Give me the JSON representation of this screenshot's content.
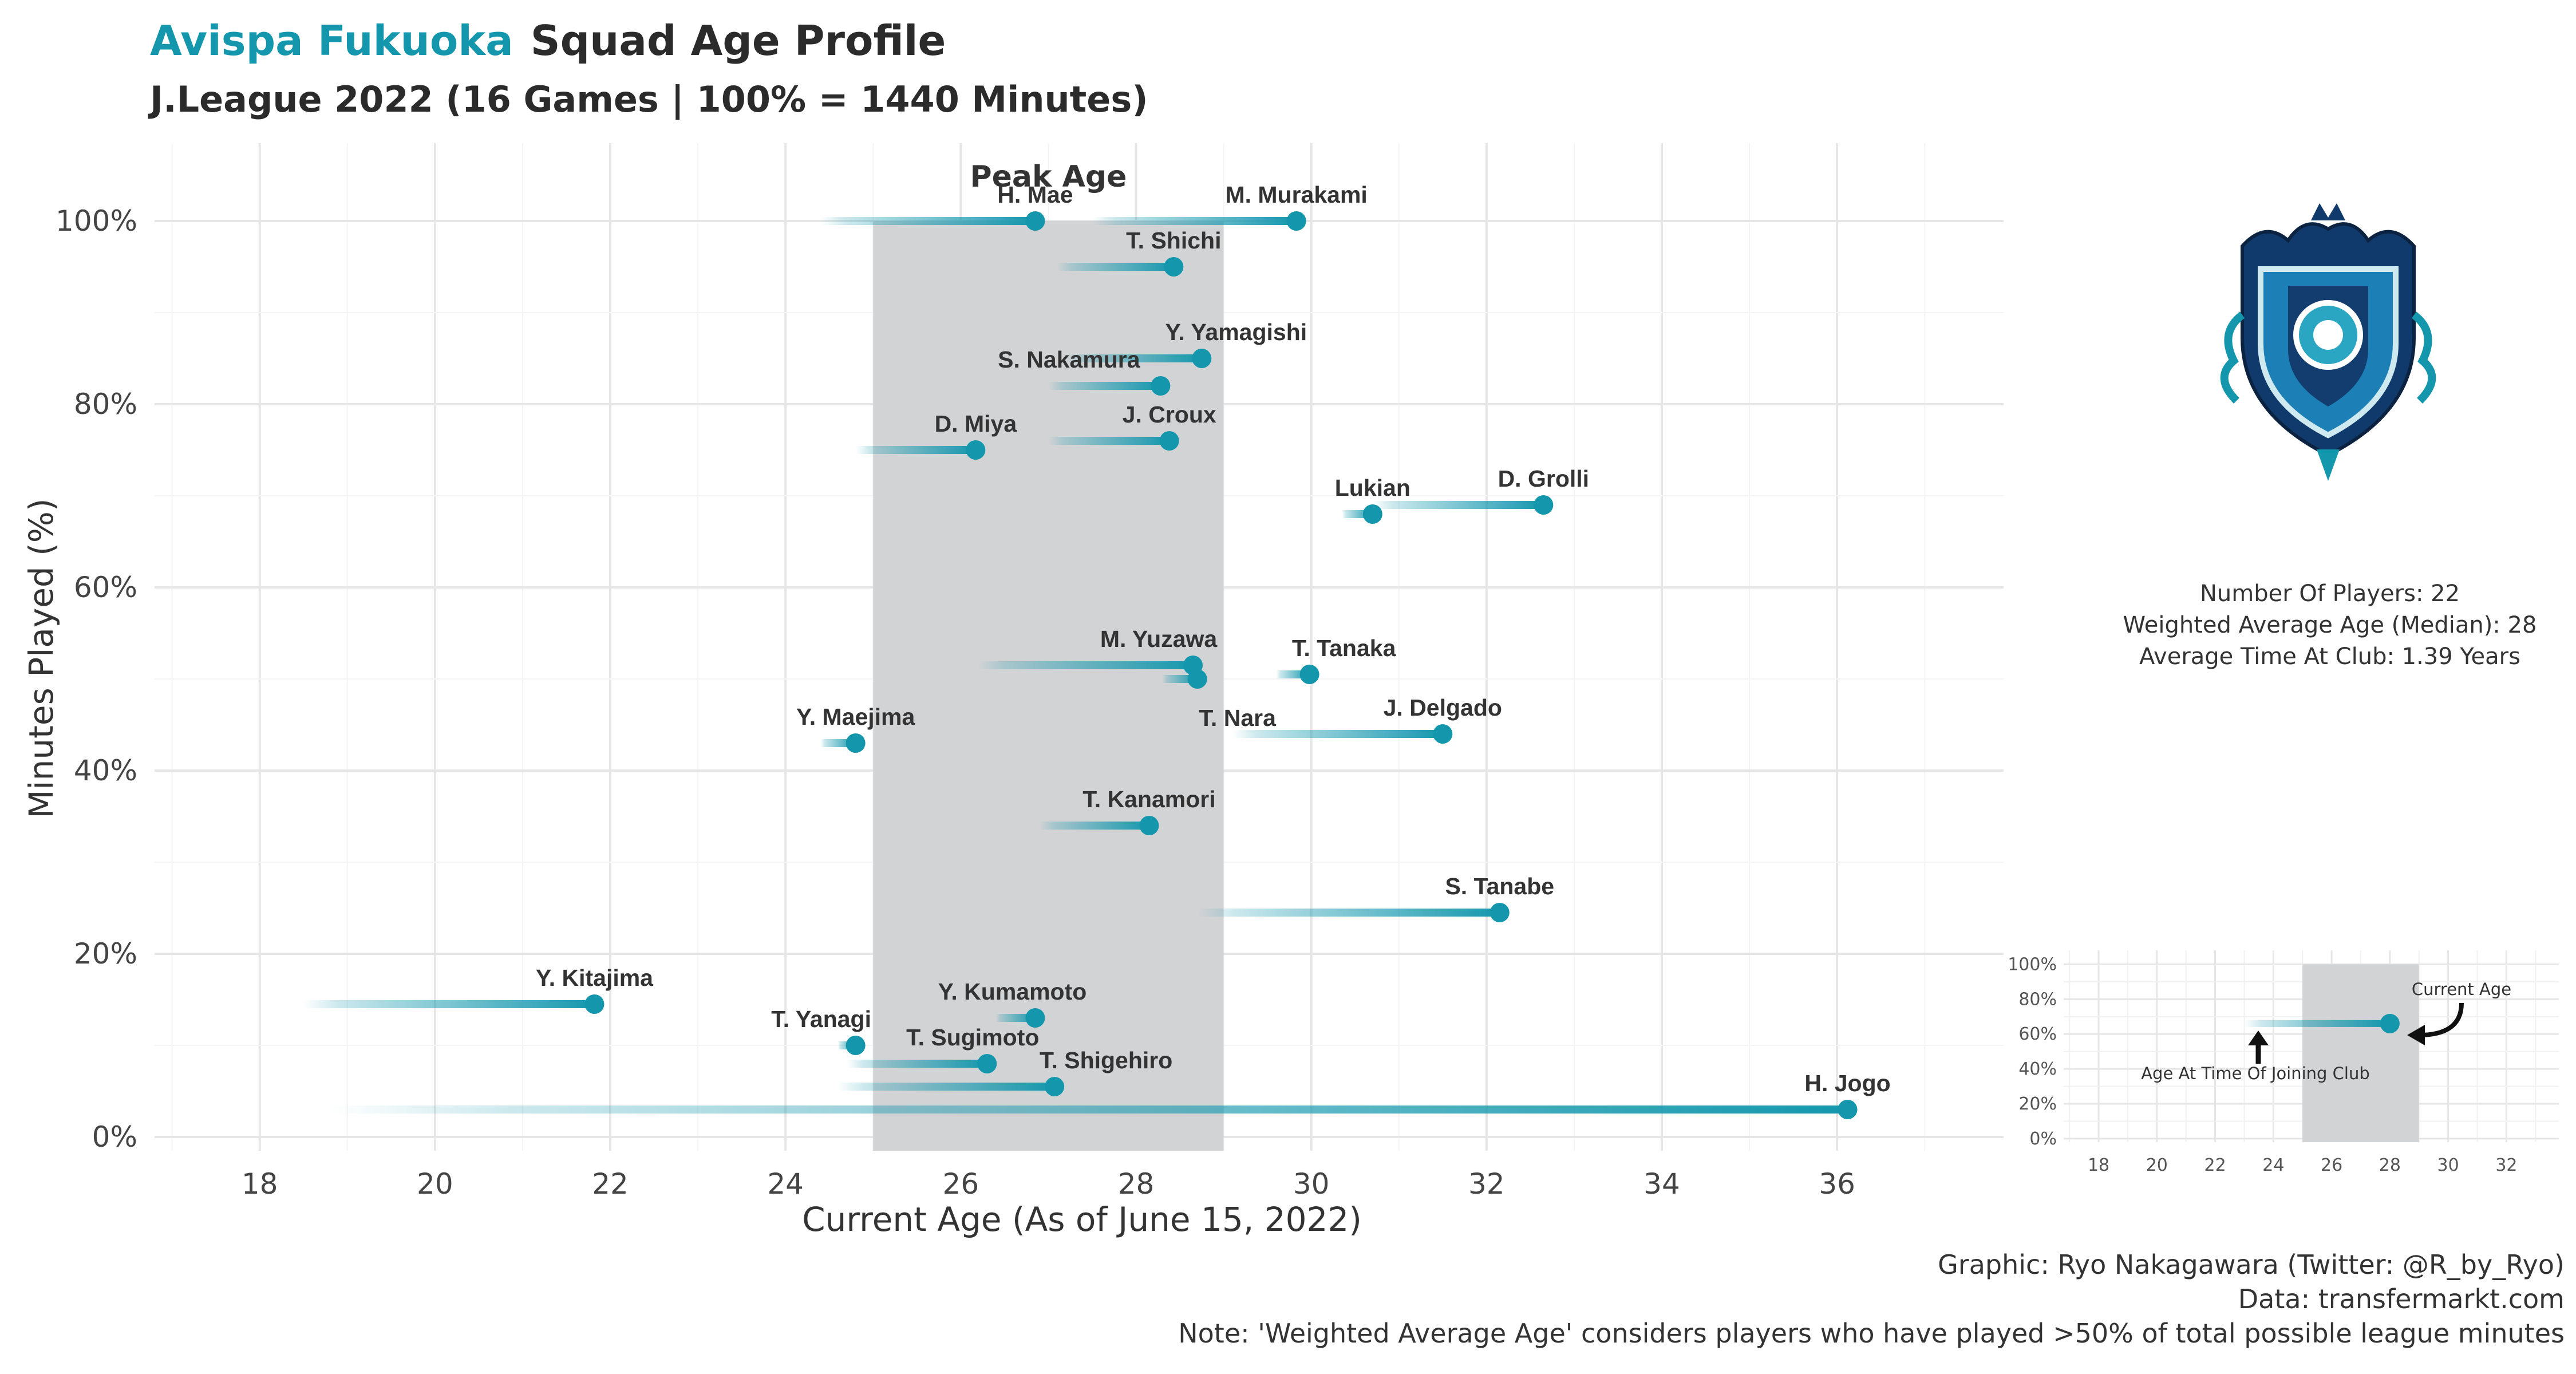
{
  "header": {
    "team_name": "Avispa Fukuoka",
    "title_rest": "Squad Age Profile",
    "subtitle": "J.League 2022 (16 Games | 100% = 1440 Minutes)"
  },
  "colors": {
    "accent": "#1497ad",
    "peak_band": "#d2d3d5",
    "grid": "#ebebeb",
    "text": "#2b2b2b"
  },
  "chart_data": {
    "type": "scatter",
    "xlabel": "Current Age (As of June 15, 2022)",
    "ylabel": "Minutes Played (%)",
    "xlim": [
      16.8,
      37.9
    ],
    "ylim": [
      -1.5,
      108.5
    ],
    "xticks": [
      18,
      20,
      22,
      24,
      26,
      28,
      30,
      32,
      34,
      36
    ],
    "yticks": [
      0,
      20,
      40,
      60,
      80,
      100
    ],
    "ytick_suffix": "%",
    "grid": true,
    "peak_age": {
      "label": "Peak Age",
      "start": 25,
      "end": 29
    },
    "players": [
      {
        "name": "H. Mae",
        "age": 26.85,
        "minutes_pct": 100,
        "joined_age": 24.4
      },
      {
        "name": "M. Murakami",
        "age": 29.83,
        "minutes_pct": 100,
        "joined_age": 27.5
      },
      {
        "name": "T. Shichi",
        "age": 28.43,
        "minutes_pct": 95,
        "joined_age": 27.1
      },
      {
        "name": "Y. Yamagishi",
        "age": 28.75,
        "minutes_pct": 85,
        "joined_age": 27.2
      },
      {
        "name": "S. Nakamura",
        "age": 28.28,
        "minutes_pct": 82,
        "joined_age": 27.0
      },
      {
        "name": "D. Miya",
        "age": 26.17,
        "minutes_pct": 75,
        "joined_age": 24.8
      },
      {
        "name": "J. Croux",
        "age": 28.38,
        "minutes_pct": 76,
        "joined_age": 27.0
      },
      {
        "name": "Lukian",
        "age": 30.7,
        "minutes_pct": 68,
        "joined_age": 30.35
      },
      {
        "name": "D. Grolli",
        "age": 32.65,
        "minutes_pct": 69,
        "joined_age": 30.7
      },
      {
        "name": "M. Yuzawa",
        "age": 28.65,
        "minutes_pct": 51.5,
        "joined_age": 26.2
      },
      {
        "name": "T. Nara",
        "age": 28.7,
        "minutes_pct": 50,
        "joined_age": 28.3
      },
      {
        "name": "T. Tanaka",
        "age": 29.98,
        "minutes_pct": 50.5,
        "joined_age": 29.6
      },
      {
        "name": "J. Delgado",
        "age": 31.5,
        "minutes_pct": 44,
        "joined_age": 29.1
      },
      {
        "name": "Y. Maejima",
        "age": 24.8,
        "minutes_pct": 43,
        "joined_age": 24.4
      },
      {
        "name": "T. Kanamori",
        "age": 28.15,
        "minutes_pct": 34,
        "joined_age": 26.9
      },
      {
        "name": "S. Tanabe",
        "age": 32.15,
        "minutes_pct": 24.5,
        "joined_age": 28.7
      },
      {
        "name": "Y. Kitajima",
        "age": 21.82,
        "minutes_pct": 14.5,
        "joined_age": 18.5
      },
      {
        "name": "Y. Kumamoto",
        "age": 26.85,
        "minutes_pct": 13,
        "joined_age": 26.4
      },
      {
        "name": "T. Yanagi",
        "age": 24.8,
        "minutes_pct": 10,
        "joined_age": 24.6
      },
      {
        "name": "T. Sugimoto",
        "age": 26.3,
        "minutes_pct": 8,
        "joined_age": 24.7
      },
      {
        "name": "T. Shigehiro",
        "age": 27.07,
        "minutes_pct": 5.5,
        "joined_age": 24.6
      },
      {
        "name": "H. Jogo",
        "age": 36.12,
        "minutes_pct": 3,
        "joined_age": 18.8
      }
    ]
  },
  "stats": {
    "line1": "Number Of Players: 22",
    "line2": "Weighted Average Age (Median): 28",
    "line3": "Average Time At Club: 1.39 Years"
  },
  "legend_inset": {
    "xticks": [
      18,
      20,
      22,
      24,
      26,
      28,
      30,
      32
    ],
    "yticks": [
      "0%",
      "20%",
      "40%",
      "60%",
      "80%",
      "100%"
    ],
    "example": {
      "joined_age": 23,
      "age": 28,
      "minutes_pct": 66
    },
    "peak": {
      "start": 25,
      "end": 29
    },
    "current_age_label": "Current Age",
    "joined_label": "Age At Time Of Joining Club"
  },
  "caption": {
    "line1": "Graphic: Ryo Nakagawara (Twitter: @R_by_Ryo)",
    "line2": "Data: transfermarkt.com",
    "line3": "Note: 'Weighted Average Age' considers players who have played >50% of total possible league minutes"
  }
}
